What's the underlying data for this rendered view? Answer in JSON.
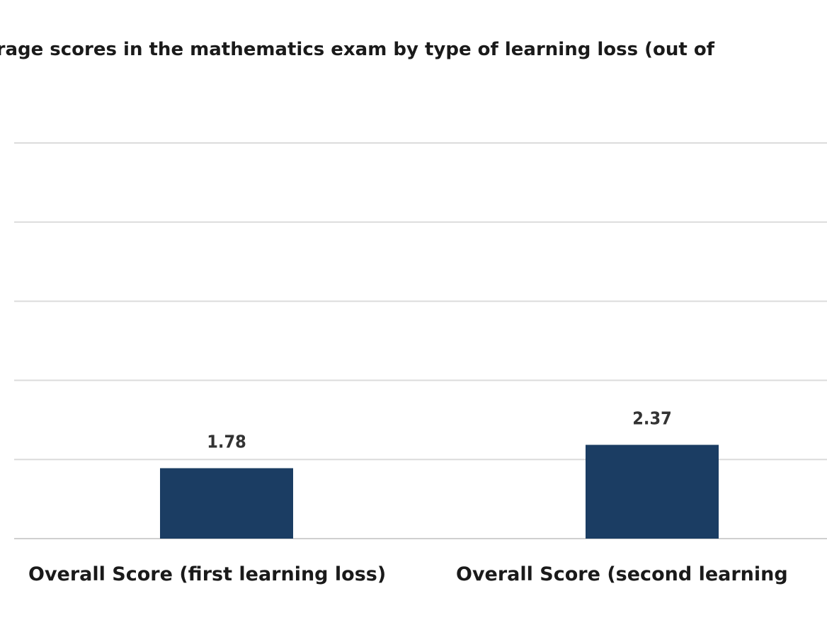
{
  "chart_data": {
    "type": "bar",
    "title": "erage scores in the mathematics exam by type of learning loss (out of",
    "categories": [
      "Overall Score (first learning loss)",
      "Overall Score (second learning"
    ],
    "values": [
      1.78,
      2.37
    ],
    "value_labels": [
      "1.78",
      "2.37"
    ],
    "xlabel": "",
    "ylabel": "",
    "ylim": [
      0,
      10
    ],
    "grid": true,
    "legend": "none",
    "bar_color": "#1b3d63"
  }
}
